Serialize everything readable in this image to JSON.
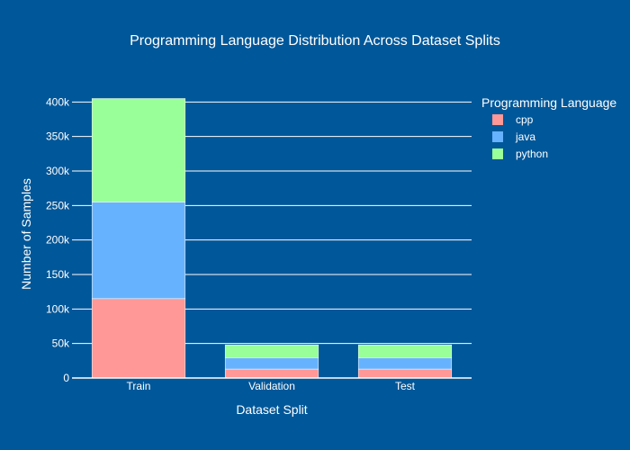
{
  "chart_data": {
    "type": "bar",
    "stacked": true,
    "title": "Programming Language Distribution Across Dataset Splits",
    "xlabel": "Dataset Split",
    "ylabel": "Number of Samples",
    "categories": [
      "Train",
      "Validation",
      "Test"
    ],
    "ylim": [
      0,
      420000
    ],
    "yticks": [
      0,
      50000,
      100000,
      150000,
      200000,
      250000,
      300000,
      350000,
      400000
    ],
    "ytick_labels": [
      "0",
      "50k",
      "100k",
      "150k",
      "200k",
      "250k",
      "300k",
      "350k",
      "400k"
    ],
    "grid": true,
    "legend": {
      "title": "Programming Language",
      "placement": "top-right"
    },
    "series": [
      {
        "name": "cpp",
        "color": "#ff9896",
        "values": [
          115000,
          13000,
          13000
        ]
      },
      {
        "name": "java",
        "color": "#66b2ff",
        "values": [
          140000,
          16000,
          16000
        ]
      },
      {
        "name": "python",
        "color": "#99ff99",
        "values": [
          150000,
          19000,
          19000
        ]
      }
    ]
  },
  "colors": {
    "background": "#005799",
    "grid": "#ffffff",
    "text": "#ffffff"
  }
}
